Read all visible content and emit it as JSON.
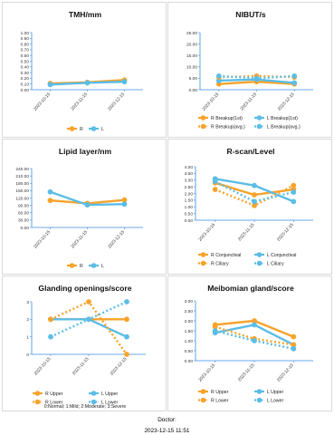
{
  "colors": {
    "right": "#f7a32b",
    "left": "#5bbde6"
  },
  "chart_data": [
    {
      "type": "line",
      "title": "TMH/mm",
      "categories": [
        "2023-10-15",
        "2023-11-15",
        "2023-12-15"
      ],
      "ylim": [
        0,
        1.0
      ],
      "yticks": [
        "0.00",
        "0.10",
        "0.20",
        "0.30",
        "0.40",
        "0.50",
        "0.60",
        "0.70",
        "0.80",
        "0.90",
        "1.00"
      ],
      "series": [
        {
          "name": "R",
          "side": "right",
          "style": "solid",
          "values": [
            0.11,
            0.13,
            0.17
          ]
        },
        {
          "name": "L",
          "side": "left",
          "style": "solid",
          "values": [
            0.09,
            0.12,
            0.14
          ]
        }
      ],
      "legend": "bottom"
    },
    {
      "type": "line",
      "title": "NIBUT/s",
      "categories": [
        "2023-10-15",
        "2023-11-15",
        "2023-12-15"
      ],
      "ylim": [
        0,
        25
      ],
      "yticks": [
        "0.00",
        "5.00",
        "10.00",
        "15.00",
        "20.00",
        "25.00"
      ],
      "series": [
        {
          "name": "R Breakup(1st)",
          "side": "right",
          "style": "solid",
          "values": [
            2.5,
            3.5,
            2.5
          ]
        },
        {
          "name": "L Breakup(1st)",
          "side": "left",
          "style": "solid",
          "values": [
            4.0,
            4.5,
            3.0
          ]
        },
        {
          "name": "R Breakup(avg.)",
          "side": "right",
          "style": "dotted",
          "values": [
            5.5,
            6.0,
            5.5
          ]
        },
        {
          "name": "L Breakup(avg.)",
          "side": "left",
          "style": "dotted",
          "values": [
            6.0,
            5.0,
            6.0
          ]
        }
      ],
      "legend": "bottom"
    },
    {
      "type": "line",
      "title": "Lipid layer/nm",
      "categories": [
        "2023-10-15",
        "2023-11-15",
        "2023-12-15"
      ],
      "ylim": [
        0,
        240
      ],
      "yticks": [
        "0.00",
        "30.00",
        "60.00",
        "90.00",
        "120.00",
        "150.00",
        "180.00",
        "210.00",
        "240.00"
      ],
      "series": [
        {
          "name": "R",
          "side": "right",
          "style": "solid",
          "values": [
            110,
            98,
            112
          ]
        },
        {
          "name": "L",
          "side": "left",
          "style": "solid",
          "values": [
            145,
            92,
            95
          ]
        }
      ],
      "legend": "bottom"
    },
    {
      "type": "line",
      "title": "R-scan/Level",
      "categories": [
        "2023-10-15",
        "2023-11-15",
        "2023-12-15"
      ],
      "ylim": [
        0,
        4.0
      ],
      "yticks": [
        "0.00",
        "0.50",
        "1.00",
        "1.50",
        "2.00",
        "2.50",
        "3.00",
        "3.50",
        "4.00"
      ],
      "series": [
        {
          "name": "R Conjunctival",
          "side": "right",
          "style": "solid",
          "values": [
            2.8,
            1.9,
            2.3
          ]
        },
        {
          "name": "L Conjunctival",
          "side": "left",
          "style": "solid",
          "values": [
            3.1,
            2.6,
            1.4
          ]
        },
        {
          "name": "R Ciliary",
          "side": "right",
          "style": "dotted",
          "values": [
            2.3,
            1.1,
            2.6
          ]
        },
        {
          "name": "L Ciliary",
          "side": "left",
          "style": "dotted",
          "values": [
            2.9,
            1.4,
            2.1
          ]
        }
      ],
      "legend": "bottom"
    },
    {
      "type": "line",
      "title": "Glanding openings/score",
      "categories": [
        "2023-10-15",
        "2023-11-15",
        "2023-12-15"
      ],
      "ylim": [
        0,
        3
      ],
      "yticks": [
        "0",
        "1",
        "2",
        "3"
      ],
      "series": [
        {
          "name": "R Upper",
          "side": "right",
          "style": "solid",
          "values": [
            2,
            2,
            2
          ]
        },
        {
          "name": "L Upper",
          "side": "left",
          "style": "solid",
          "values": [
            2,
            2,
            1
          ]
        },
        {
          "name": "R Lower",
          "side": "right",
          "style": "dotted",
          "values": [
            2,
            3,
            0
          ]
        },
        {
          "name": "L Lower",
          "side": "left",
          "style": "dotted",
          "values": [
            1,
            2,
            3
          ]
        }
      ],
      "note": "0:Normal; 1:Mild; 2:Moderate; 3:Severe",
      "legend": "bottom"
    },
    {
      "type": "line",
      "title": "Meibomian gland/score",
      "categories": [
        "2023-10-15",
        "2023-11-15",
        "2023-12-15"
      ],
      "ylim": [
        0,
        3.0
      ],
      "yticks": [
        "0.00",
        "0.50",
        "1.00",
        "1.50",
        "2.00",
        "2.50",
        "3.00"
      ],
      "series": [
        {
          "name": "R Upper",
          "side": "right",
          "style": "solid",
          "values": [
            1.8,
            2.0,
            1.2
          ]
        },
        {
          "name": "L Upper",
          "side": "left",
          "style": "solid",
          "values": [
            1.4,
            1.8,
            0.8
          ]
        },
        {
          "name": "R Lower",
          "side": "right",
          "style": "dotted",
          "values": [
            1.7,
            1.1,
            0.8
          ]
        },
        {
          "name": "L Lower",
          "side": "left",
          "style": "dotted",
          "values": [
            1.5,
            1.0,
            0.6
          ]
        }
      ],
      "legend": "bottom"
    }
  ],
  "footer": {
    "doctor_label": "Doctor:",
    "timestamp": "2023-12-15 11:51"
  }
}
